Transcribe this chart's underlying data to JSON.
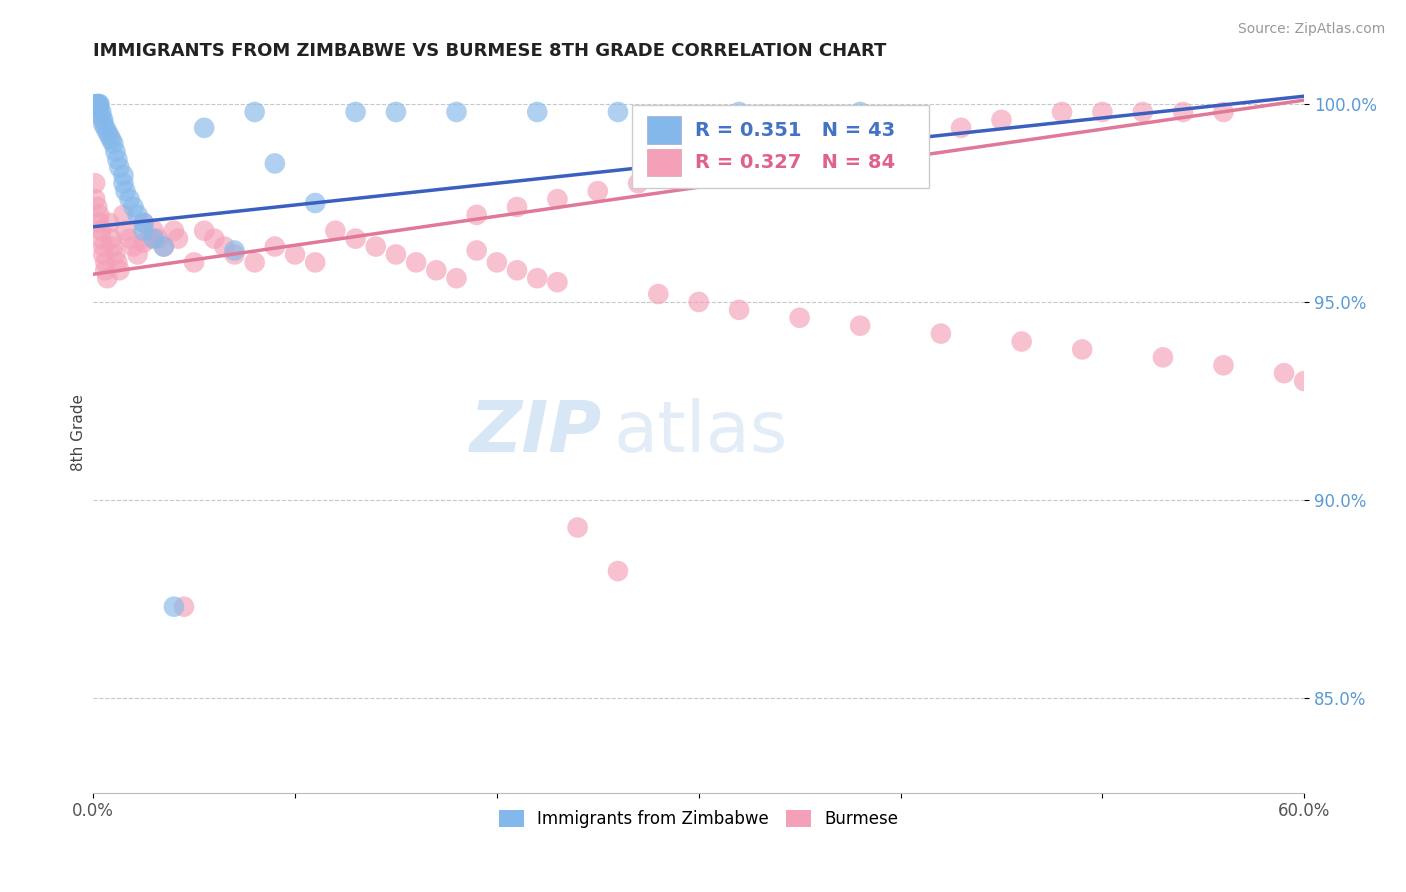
{
  "title": "IMMIGRANTS FROM ZIMBABWE VS BURMESE 8TH GRADE CORRELATION CHART",
  "source_text": "Source: ZipAtlas.com",
  "ylabel": "8th Grade",
  "xlim": [
    0.0,
    0.6
  ],
  "ylim": [
    0.826,
    1.008
  ],
  "x_ticks": [
    0.0,
    0.1,
    0.2,
    0.3,
    0.4,
    0.5,
    0.6
  ],
  "x_tick_labels": [
    "0.0%",
    "",
    "",
    "",
    "",
    "",
    "60.0%"
  ],
  "y_ticks": [
    0.85,
    0.9,
    0.95,
    1.0
  ],
  "y_tick_labels": [
    "85.0%",
    "90.0%",
    "95.0%",
    "100.0%"
  ],
  "blue_color": "#85B8EA",
  "pink_color": "#F4A0B8",
  "blue_line_color": "#3A5FBF",
  "pink_line_color": "#E07898",
  "legend_R_blue": "R = 0.351",
  "legend_N_blue": "N = 43",
  "legend_R_pink": "R = 0.327",
  "legend_N_pink": "N = 84",
  "legend_label_blue": "Immigrants from Zimbabwe",
  "legend_label_pink": "Burmese",
  "background_color": "#ffffff",
  "grid_color": "#c8c8c8",
  "blue_line_x0": 0.0,
  "blue_line_y0": 0.969,
  "blue_line_x1": 0.6,
  "blue_line_y1": 1.002,
  "pink_line_x0": 0.0,
  "pink_line_y0": 0.957,
  "pink_line_x1": 0.6,
  "pink_line_y1": 1.001,
  "blue_x": [
    0.001,
    0.001,
    0.002,
    0.002,
    0.002,
    0.003,
    0.003,
    0.003,
    0.004,
    0.004,
    0.005,
    0.005,
    0.006,
    0.007,
    0.008,
    0.009,
    0.01,
    0.011,
    0.012,
    0.013,
    0.015,
    0.015,
    0.016,
    0.018,
    0.02,
    0.022,
    0.025,
    0.025,
    0.03,
    0.035,
    0.04,
    0.055,
    0.07,
    0.08,
    0.09,
    0.11,
    0.13,
    0.15,
    0.18,
    0.22,
    0.26,
    0.32,
    0.38
  ],
  "blue_y": [
    1.0,
    0.999,
    1.0,
    1.0,
    0.999,
    1.0,
    1.0,
    0.999,
    0.998,
    0.997,
    0.996,
    0.995,
    0.994,
    0.993,
    0.992,
    0.991,
    0.99,
    0.988,
    0.986,
    0.984,
    0.982,
    0.98,
    0.978,
    0.976,
    0.974,
    0.972,
    0.97,
    0.968,
    0.966,
    0.964,
    0.873,
    0.994,
    0.963,
    0.998,
    0.985,
    0.975,
    0.998,
    0.998,
    0.998,
    0.998,
    0.998,
    0.998,
    0.998
  ],
  "pink_x": [
    0.001,
    0.001,
    0.002,
    0.003,
    0.003,
    0.004,
    0.004,
    0.005,
    0.005,
    0.006,
    0.006,
    0.007,
    0.008,
    0.009,
    0.01,
    0.011,
    0.012,
    0.013,
    0.015,
    0.016,
    0.018,
    0.02,
    0.022,
    0.025,
    0.025,
    0.028,
    0.03,
    0.032,
    0.035,
    0.04,
    0.042,
    0.045,
    0.05,
    0.055,
    0.06,
    0.065,
    0.07,
    0.08,
    0.09,
    0.1,
    0.11,
    0.12,
    0.13,
    0.14,
    0.15,
    0.16,
    0.17,
    0.18,
    0.19,
    0.2,
    0.21,
    0.22,
    0.23,
    0.24,
    0.26,
    0.28,
    0.3,
    0.32,
    0.35,
    0.38,
    0.42,
    0.46,
    0.49,
    0.53,
    0.56,
    0.59,
    0.6,
    0.56,
    0.54,
    0.52,
    0.5,
    0.48,
    0.45,
    0.43,
    0.4,
    0.37,
    0.34,
    0.31,
    0.29,
    0.27,
    0.25,
    0.23,
    0.21,
    0.19
  ],
  "pink_y": [
    0.98,
    0.976,
    0.974,
    0.972,
    0.97,
    0.968,
    0.966,
    0.964,
    0.962,
    0.96,
    0.958,
    0.956,
    0.97,
    0.966,
    0.964,
    0.962,
    0.96,
    0.958,
    0.972,
    0.968,
    0.966,
    0.964,
    0.962,
    0.97,
    0.965,
    0.966,
    0.968,
    0.966,
    0.964,
    0.968,
    0.966,
    0.873,
    0.96,
    0.968,
    0.966,
    0.964,
    0.962,
    0.96,
    0.964,
    0.962,
    0.96,
    0.968,
    0.966,
    0.964,
    0.962,
    0.96,
    0.958,
    0.956,
    0.963,
    0.96,
    0.958,
    0.956,
    0.955,
    0.893,
    0.882,
    0.952,
    0.95,
    0.948,
    0.946,
    0.944,
    0.942,
    0.94,
    0.938,
    0.936,
    0.934,
    0.932,
    0.93,
    0.998,
    0.998,
    0.998,
    0.998,
    0.998,
    0.996,
    0.994,
    0.99,
    0.988,
    0.986,
    0.984,
    0.982,
    0.98,
    0.978,
    0.976,
    0.974,
    0.972
  ]
}
